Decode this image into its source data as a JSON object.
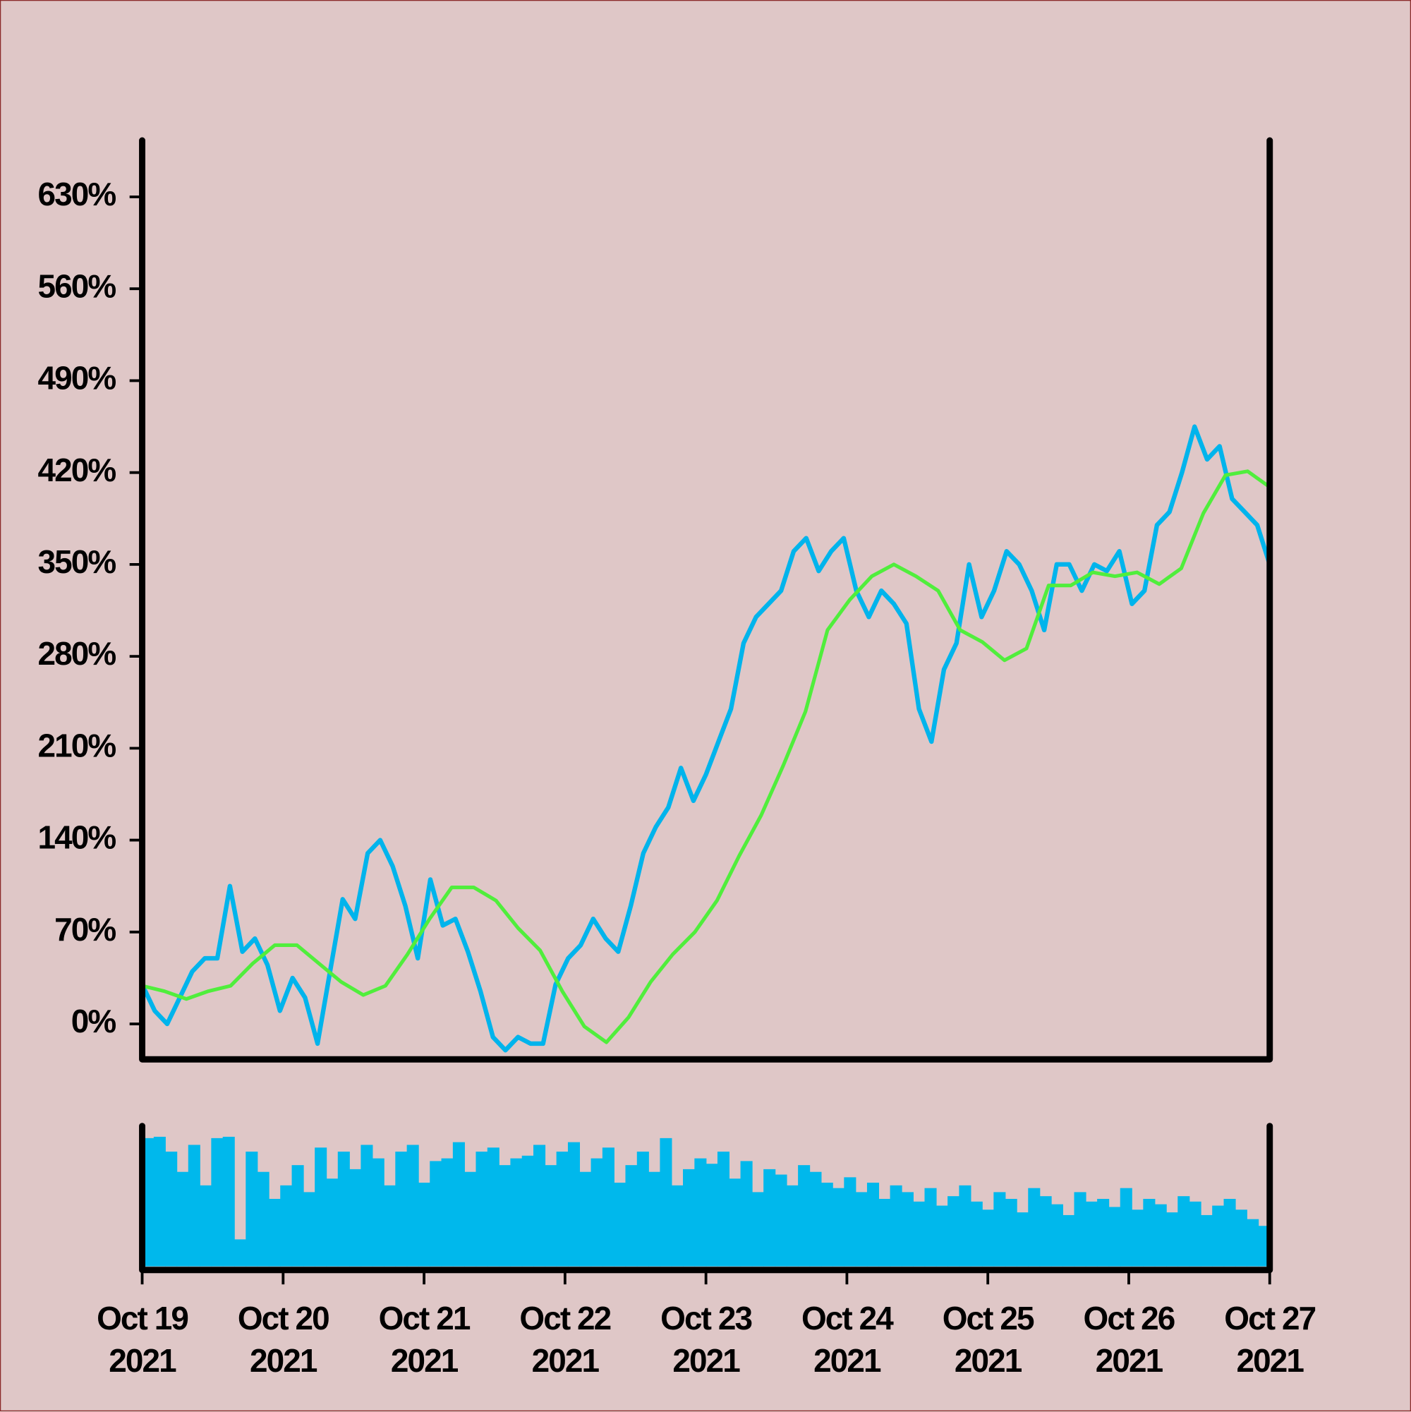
{
  "chart_data": [
    {
      "type": "line",
      "xlim": [
        0,
        8
      ],
      "ylim": [
        -27,
        673
      ],
      "yticks": [
        {
          "value": 0,
          "label": "0%"
        },
        {
          "value": 70,
          "label": "70%"
        },
        {
          "value": 140,
          "label": "140%"
        },
        {
          "value": 210,
          "label": "210%"
        },
        {
          "value": 280,
          "label": "280%"
        },
        {
          "value": 350,
          "label": "350%"
        },
        {
          "value": 420,
          "label": "420%"
        },
        {
          "value": 490,
          "label": "490%"
        },
        {
          "value": 560,
          "label": "560%"
        },
        {
          "value": 630,
          "label": "630%"
        }
      ],
      "series": [
        {
          "color": "#00b4ec",
          "values": [
            30,
            10,
            0,
            20,
            40,
            50,
            50,
            105,
            55,
            65,
            45,
            10,
            35,
            20,
            -15,
            40,
            95,
            80,
            130,
            140,
            120,
            90,
            50,
            110,
            75,
            80,
            55,
            25,
            -10,
            -20,
            -10,
            -15,
            -15,
            30,
            50,
            60,
            80,
            65,
            55,
            90,
            130,
            150,
            165,
            195,
            170,
            190,
            215,
            240,
            290,
            310,
            320,
            330,
            360,
            370,
            345,
            360,
            370,
            330,
            310,
            330,
            320,
            305,
            240,
            215,
            270,
            290,
            350,
            310,
            330,
            360,
            350,
            330,
            300,
            350,
            350,
            330,
            350,
            345,
            360,
            320,
            330,
            380,
            390,
            420,
            455,
            430,
            440,
            400,
            390,
            380,
            350
          ]
        },
        {
          "color": "#50ee3c",
          "values": [
            29,
            25,
            19,
            25,
            29,
            46,
            60,
            60,
            46,
            32,
            22,
            29,
            53,
            80,
            104,
            104,
            94,
            73,
            56,
            25,
            -2,
            -14,
            5,
            32,
            53,
            70,
            94,
            128,
            159,
            197,
            238,
            300,
            323,
            341,
            350,
            341,
            330,
            300,
            291,
            277,
            286,
            334,
            334,
            344,
            341,
            344,
            335,
            347,
            389,
            418,
            421,
            409
          ]
        }
      ]
    },
    {
      "type": "bar",
      "color": "#00b8ec",
      "xlim": [
        0,
        8
      ],
      "xticks": [
        {
          "value": 0,
          "label": "Oct 19 2021"
        },
        {
          "value": 1,
          "label": "Oct 20 2021"
        },
        {
          "value": 2,
          "label": "Oct 21 2021"
        },
        {
          "value": 3,
          "label": "Oct 22 2021"
        },
        {
          "value": 4,
          "label": "Oct 23 2021"
        },
        {
          "value": 5,
          "label": "Oct 24 2021"
        },
        {
          "value": 6,
          "label": "Oct 25 2021"
        },
        {
          "value": 7,
          "label": "Oct 26 2021"
        },
        {
          "value": 8,
          "label": "Oct 27 2021"
        }
      ],
      "values": [
        95,
        96,
        85,
        70,
        90,
        60,
        95,
        96,
        20,
        85,
        70,
        50,
        60,
        75,
        55,
        88,
        65,
        85,
        72,
        90,
        80,
        60,
        85,
        90,
        62,
        78,
        80,
        92,
        70,
        85,
        88,
        75,
        80,
        82,
        90,
        75,
        85,
        92,
        70,
        80,
        88,
        62,
        75,
        85,
        70,
        95,
        60,
        72,
        80,
        76,
        85,
        65,
        78,
        55,
        72,
        68,
        60,
        75,
        70,
        62,
        58,
        66,
        55,
        62,
        50,
        60,
        55,
        48,
        58,
        45,
        52,
        60,
        48,
        42,
        55,
        50,
        40,
        58,
        52,
        46,
        38,
        55,
        48,
        50,
        44,
        58,
        42,
        50,
        46,
        40,
        52,
        48,
        38,
        45,
        50,
        42,
        35,
        30
      ]
    }
  ]
}
